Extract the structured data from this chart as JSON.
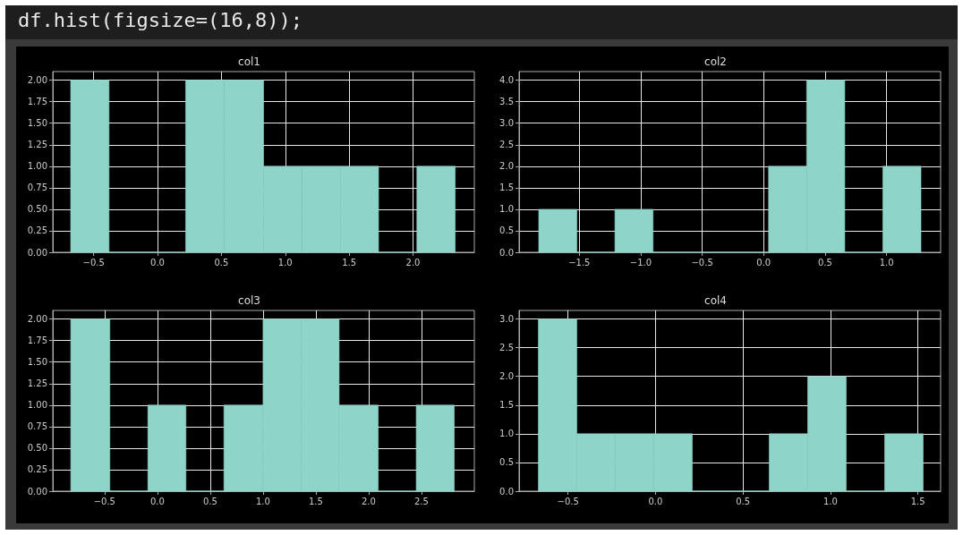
{
  "chart_data": [
    {
      "type": "histogram",
      "title": "col1",
      "annotations": [
        "df.hist(figsize=(16,8));"
      ],
      "color": "#8fd4c8",
      "grid": true,
      "bins": [
        -0.68,
        -0.38,
        0.22,
        0.52,
        0.83,
        1.13,
        1.43,
        1.73,
        2.03,
        2.33
      ],
      "values": [
        2,
        0,
        2,
        2,
        1,
        1,
        1,
        0,
        1
      ],
      "xlim": [
        -0.82,
        2.48
      ],
      "xticks": [
        {
          "value": -0.5,
          "label": "−0.5"
        },
        {
          "value": 0,
          "label": "0.0"
        },
        0.5,
        {
          "value": 1,
          "label": "1.0"
        },
        1.5,
        {
          "value": 2,
          "label": "2.0"
        }
      ],
      "ylim": [
        0,
        2.1
      ],
      "yticks": [
        {
          "value": 0,
          "label": "0.00"
        },
        0.25,
        {
          "value": 0.5,
          "label": "0.50"
        },
        0.75,
        {
          "value": 1,
          "label": "1.00"
        },
        1.25,
        {
          "value": 1.5,
          "label": "1.50"
        },
        1.75,
        {
          "value": 2,
          "label": "2.00"
        }
      ]
    },
    {
      "type": "histogram",
      "title": "col2",
      "color": "#8fd4c8",
      "grid": true,
      "bins": [
        -1.83,
        -1.52,
        -1.21,
        -0.9,
        0.04,
        0.35,
        0.66,
        0.97,
        1.28
      ],
      "values": [
        1,
        0,
        1,
        0,
        2,
        4,
        0,
        2
      ],
      "xlim": [
        -1.99,
        1.44
      ],
      "xticks": [
        {
          "value": -1.5,
          "label": "−1.5"
        },
        {
          "value": -1,
          "label": "−1.0"
        },
        {
          "value": -0.5,
          "label": "−0.5"
        },
        {
          "value": 0,
          "label": "0.0"
        },
        0.5,
        {
          "value": 1,
          "label": "1.0"
        }
      ],
      "ylim": [
        0,
        4.2
      ],
      "yticks": [
        {
          "value": 0,
          "label": "0.0"
        },
        0.5,
        {
          "value": 1,
          "label": "1.0"
        },
        1.5,
        {
          "value": 2,
          "label": "2.0"
        },
        2.5,
        {
          "value": 3,
          "label": "3.0"
        },
        3.5,
        {
          "value": 4,
          "label": "4.0"
        }
      ]
    },
    {
      "type": "histogram",
      "title": "col3",
      "color": "#8fd4c8",
      "grid": true,
      "bins": [
        -0.82,
        -0.45,
        -0.09,
        0.27,
        0.63,
        1.0,
        1.36,
        1.72,
        2.09,
        2.45,
        2.81
      ],
      "values": [
        2,
        0,
        1,
        0,
        1,
        2,
        2,
        1,
        0,
        1
      ],
      "xlim": [
        -0.99,
        3.0
      ],
      "xticks": [
        {
          "value": -0.5,
          "label": "−0.5"
        },
        {
          "value": 0,
          "label": "0.0"
        },
        0.5,
        {
          "value": 1,
          "label": "1.0"
        },
        1.5,
        {
          "value": 2,
          "label": "2.0"
        },
        2.5
      ],
      "ylim": [
        0,
        2.1
      ],
      "yticks": [
        {
          "value": 0,
          "label": "0.00"
        },
        0.25,
        {
          "value": 0.5,
          "label": "0.50"
        },
        0.75,
        {
          "value": 1,
          "label": "1.00"
        },
        1.25,
        {
          "value": 1.5,
          "label": "1.50"
        },
        1.75,
        {
          "value": 2,
          "label": "2.00"
        }
      ]
    },
    {
      "type": "histogram",
      "title": "col4",
      "color": "#8fd4c8",
      "grid": true,
      "bins": [
        -0.67,
        -0.45,
        -0.23,
        -0.01,
        0.21,
        0.43,
        0.65,
        0.87,
        1.09,
        1.31,
        1.53
      ],
      "values": [
        3,
        1,
        1,
        1,
        0,
        0,
        1,
        2,
        0,
        1
      ],
      "xlim": [
        -0.78,
        1.63
      ],
      "xticks": [
        {
          "value": -0.5,
          "label": "−0.5"
        },
        {
          "value": 0,
          "label": "0.0"
        },
        0.5,
        {
          "value": 1,
          "label": "1.0"
        },
        1.5
      ],
      "ylim": [
        0,
        3.15
      ],
      "yticks": [
        {
          "value": 0,
          "label": "0.0"
        },
        0.5,
        {
          "value": 1,
          "label": "1.0"
        },
        1.5,
        {
          "value": 2,
          "label": "2.0"
        },
        2.5,
        {
          "value": 3,
          "label": "3.0"
        }
      ]
    }
  ]
}
